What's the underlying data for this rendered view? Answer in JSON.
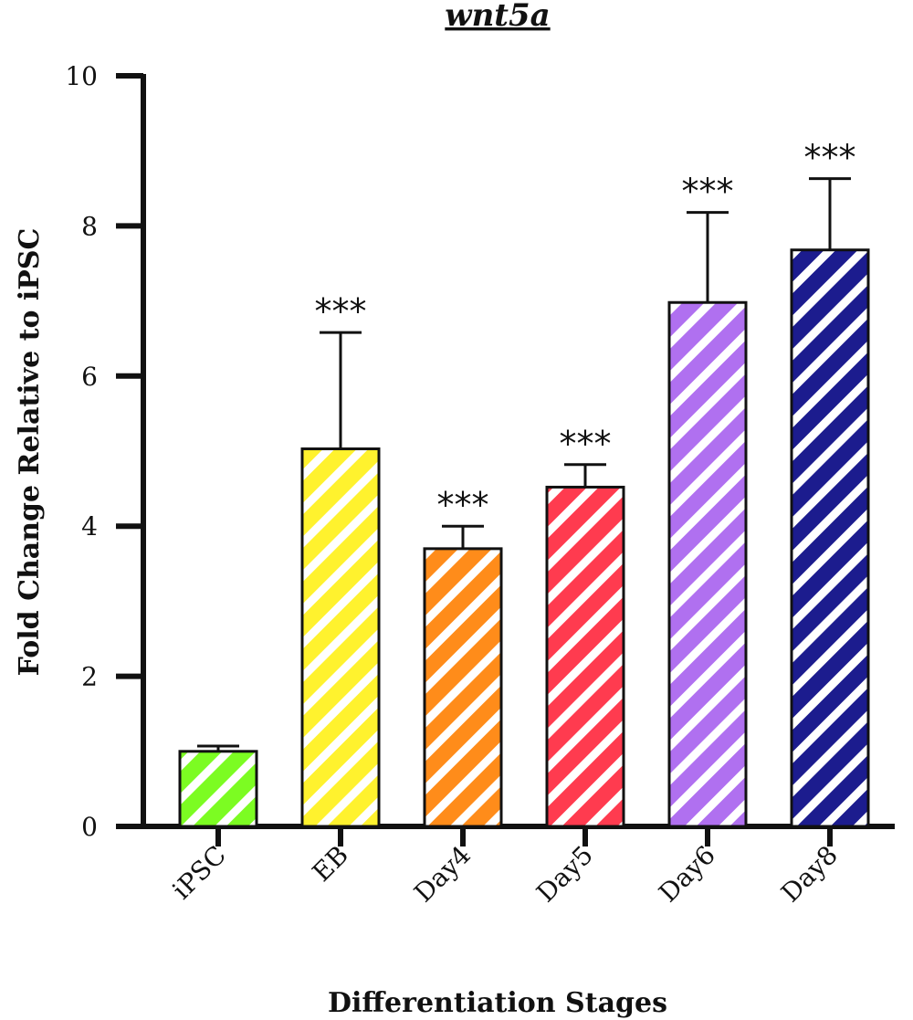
{
  "chart_data": {
    "type": "bar",
    "title": "wnt5a",
    "xlabel": "Differentiation Stages",
    "ylabel": "Fold Change Relative to iPSC",
    "ylim": [
      0,
      10
    ],
    "yticks": [
      0,
      2,
      4,
      6,
      8,
      10
    ],
    "categories": [
      "iPSC",
      "EB",
      "Day4",
      "Day5",
      "Day6",
      "Day8"
    ],
    "values": [
      1.0,
      5.03,
      3.7,
      4.52,
      6.98,
      7.68
    ],
    "errors": [
      0.07,
      1.55,
      0.3,
      0.3,
      1.2,
      0.95
    ],
    "significance": [
      "",
      "***",
      "***",
      "***",
      "***",
      "***"
    ],
    "colors": [
      "#7CFC22",
      "#FFF22E",
      "#FF8C1A",
      "#FF3B4F",
      "#B070F0",
      "#1C1C8E"
    ],
    "pattern": "diagonal white stripes",
    "grid": false,
    "legend": "none"
  }
}
